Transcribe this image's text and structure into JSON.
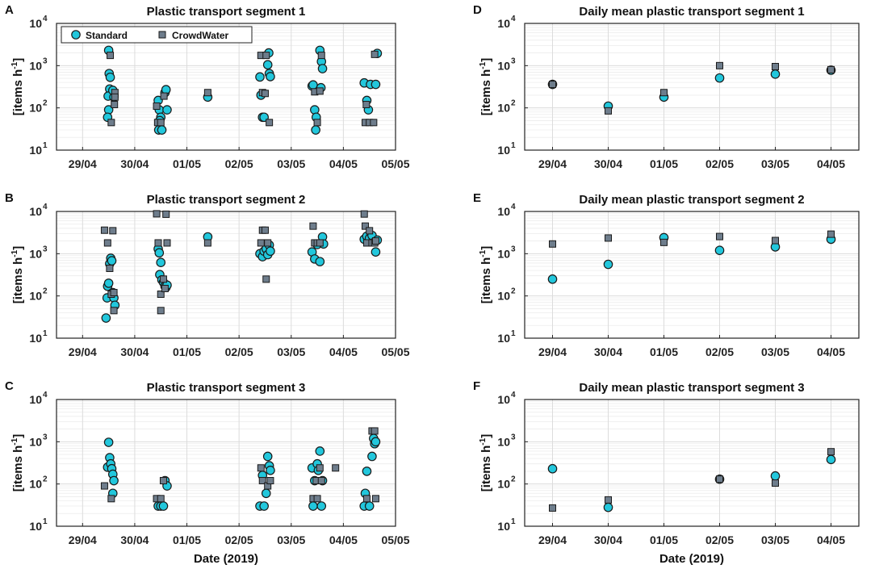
{
  "figure": {
    "colors": {
      "standard": "#22c7dc",
      "crowdwater": "#6e7d8c",
      "stroke": "#1a1a1a",
      "grid": "#dcdcdc"
    },
    "legend": {
      "standard": "Standard",
      "crowdwater": "CrowdWater"
    },
    "ylabel_main": "[items h",
    "ylabel_exp": "-1",
    "ylabel_close": "]",
    "xlabel": "Date (2019)",
    "ytick_base": "10",
    "ytick_exps": [
      "1",
      "2",
      "3",
      "4"
    ]
  },
  "chart_data": [
    {
      "id": "A",
      "letter": "A",
      "title": "Plastic transport segment 1",
      "type": "scatter",
      "yscale": "log",
      "ylim": [
        10,
        10000
      ],
      "xlim": [
        -0.5,
        6.0
      ],
      "xticks": [
        0,
        1,
        2,
        3,
        4,
        5,
        6
      ],
      "xticklabels": [
        "29/04",
        "30/04",
        "01/05",
        "02/05",
        "03/05",
        "04/05",
        "05/05"
      ],
      "series": [
        {
          "name": "Standard",
          "points": [
            [
              0.5,
              2300
            ],
            [
              0.51,
              650
            ],
            [
              0.52,
              280
            ],
            [
              0.49,
              190
            ],
            [
              0.5,
              90
            ],
            [
              0.48,
              60
            ],
            [
              0.53,
              530
            ],
            [
              0.6,
              180
            ],
            [
              0.58,
              260
            ],
            [
              1.45,
              150
            ],
            [
              1.47,
              90
            ],
            [
              1.5,
              60
            ],
            [
              1.48,
              50
            ],
            [
              1.46,
              30
            ],
            [
              1.52,
              30
            ],
            [
              1.58,
              230
            ],
            [
              1.6,
              270
            ],
            [
              1.62,
              90
            ],
            [
              2.4,
              180
            ],
            [
              3.4,
              540
            ],
            [
              3.42,
              200
            ],
            [
              3.45,
              60
            ],
            [
              3.48,
              60
            ],
            [
              3.55,
              1050
            ],
            [
              3.58,
              650
            ],
            [
              3.6,
              550
            ],
            [
              3.57,
              2000
            ],
            [
              4.4,
              330
            ],
            [
              4.42,
              350
            ],
            [
              4.45,
              90
            ],
            [
              4.48,
              60
            ],
            [
              4.47,
              30
            ],
            [
              4.55,
              2300
            ],
            [
              4.58,
              1250
            ],
            [
              4.6,
              850
            ],
            [
              4.57,
              300
            ],
            [
              5.4,
              390
            ],
            [
              5.45,
              150
            ],
            [
              5.48,
              90
            ],
            [
              5.52,
              360
            ],
            [
              5.62,
              360
            ],
            [
              5.65,
              1950
            ]
          ]
        },
        {
          "name": "CrowdWater",
          "points": [
            [
              0.53,
              1750
            ],
            [
              0.55,
              45
            ],
            [
              0.62,
              230
            ],
            [
              0.62,
              180
            ],
            [
              0.61,
              120
            ],
            [
              1.42,
              110
            ],
            [
              1.44,
              45
            ],
            [
              1.5,
              45
            ],
            [
              1.56,
              190
            ],
            [
              2.4,
              230
            ],
            [
              3.42,
              1750
            ],
            [
              3.45,
              230
            ],
            [
              3.5,
              220
            ],
            [
              3.52,
              1750
            ],
            [
              3.58,
              45
            ],
            [
              4.45,
              240
            ],
            [
              4.5,
              45
            ],
            [
              4.55,
              250
            ],
            [
              4.58,
              1750
            ],
            [
              5.42,
              45
            ],
            [
              5.44,
              120
            ],
            [
              5.5,
              45
            ],
            [
              5.58,
              45
            ],
            [
              5.6,
              1850
            ]
          ]
        }
      ]
    },
    {
      "id": "D",
      "letter": "D",
      "title": "Daily mean plastic transport segment 1",
      "type": "scatter",
      "yscale": "log",
      "ylim": [
        10,
        10000
      ],
      "xlim": [
        -0.5,
        5.5
      ],
      "xticks": [
        0,
        1,
        2,
        3,
        4,
        5
      ],
      "xticklabels": [
        "29/04",
        "30/04",
        "01/05",
        "02/05",
        "03/05",
        "04/05"
      ],
      "series": [
        {
          "name": "Standard",
          "points": [
            [
              0,
              360
            ],
            [
              1,
              110
            ],
            [
              2,
              180
            ],
            [
              3,
              510
            ],
            [
              4,
              630
            ],
            [
              5,
              780
            ]
          ]
        },
        {
          "name": "CrowdWater",
          "points": [
            [
              0,
              360
            ],
            [
              1,
              85
            ],
            [
              2,
              230
            ],
            [
              3,
              1000
            ],
            [
              4,
              950
            ],
            [
              5,
              800
            ]
          ]
        }
      ]
    },
    {
      "id": "B",
      "letter": "B",
      "title": "Plastic transport segment 2",
      "type": "scatter",
      "yscale": "log",
      "ylim": [
        10,
        10000
      ],
      "xlim": [
        -0.5,
        6.0
      ],
      "xticks": [
        0,
        1,
        2,
        3,
        4,
        5,
        6
      ],
      "xticklabels": [
        "29/04",
        "30/04",
        "01/05",
        "02/05",
        "03/05",
        "04/05",
        "05/05"
      ],
      "series": [
        {
          "name": "Standard",
          "points": [
            [
              0.45,
              30
            ],
            [
              0.47,
              90
            ],
            [
              0.48,
              170
            ],
            [
              0.5,
              200
            ],
            [
              0.52,
              580
            ],
            [
              0.54,
              780
            ],
            [
              0.56,
              680
            ],
            [
              0.58,
              120
            ],
            [
              0.6,
              90
            ],
            [
              0.62,
              60
            ],
            [
              1.45,
              1300
            ],
            [
              1.47,
              1050
            ],
            [
              1.5,
              620
            ],
            [
              1.48,
              320
            ],
            [
              1.52,
              240
            ],
            [
              1.55,
              210
            ],
            [
              1.58,
              170
            ],
            [
              1.6,
              160
            ],
            [
              1.62,
              180
            ],
            [
              2.4,
              2500
            ],
            [
              3.4,
              1000
            ],
            [
              3.45,
              850
            ],
            [
              3.48,
              1150
            ],
            [
              3.52,
              1300
            ],
            [
              3.55,
              950
            ],
            [
              3.58,
              1600
            ],
            [
              3.6,
              1150
            ],
            [
              4.4,
              1100
            ],
            [
              4.45,
              750
            ],
            [
              4.5,
              1650
            ],
            [
              4.55,
              650
            ],
            [
              4.6,
              2500
            ],
            [
              4.62,
              1700
            ],
            [
              5.4,
              2200
            ],
            [
              5.45,
              2600
            ],
            [
              5.5,
              2300
            ],
            [
              5.55,
              2700
            ],
            [
              5.6,
              1900
            ],
            [
              5.62,
              1100
            ],
            [
              5.65,
              2100
            ]
          ]
        },
        {
          "name": "CrowdWater",
          "points": [
            [
              0.42,
              3600
            ],
            [
              0.48,
              1800
            ],
            [
              0.52,
              450
            ],
            [
              0.55,
              110
            ],
            [
              0.58,
              3500
            ],
            [
              0.6,
              45
            ],
            [
              0.6,
              120
            ],
            [
              1.42,
              8800
            ],
            [
              1.45,
              1800
            ],
            [
              1.5,
              110
            ],
            [
              1.5,
              45
            ],
            [
              1.55,
              250
            ],
            [
              1.58,
              150
            ],
            [
              1.6,
              8600
            ],
            [
              1.62,
              1800
            ],
            [
              2.4,
              1800
            ],
            [
              3.42,
              1800
            ],
            [
              3.45,
              3600
            ],
            [
              3.5,
              3600
            ],
            [
              3.52,
              250
            ],
            [
              3.55,
              1800
            ],
            [
              4.42,
              4500
            ],
            [
              4.45,
              1800
            ],
            [
              4.5,
              1800
            ],
            [
              4.55,
              1800
            ],
            [
              5.4,
              8700
            ],
            [
              5.42,
              4500
            ],
            [
              5.45,
              1800
            ],
            [
              5.5,
              3500
            ],
            [
              5.55,
              1800
            ],
            [
              5.6,
              1800
            ],
            [
              5.62,
              2000
            ]
          ]
        }
      ]
    },
    {
      "id": "E",
      "letter": "E",
      "title": "Daily mean plastic transport segment 2",
      "type": "scatter",
      "yscale": "log",
      "ylim": [
        10,
        10000
      ],
      "xlim": [
        -0.5,
        5.5
      ],
      "xticks": [
        0,
        1,
        2,
        3,
        4,
        5
      ],
      "xticklabels": [
        "29/04",
        "30/04",
        "01/05",
        "02/05",
        "03/05",
        "04/05"
      ],
      "series": [
        {
          "name": "Standard",
          "points": [
            [
              0,
              250
            ],
            [
              1,
              560
            ],
            [
              2,
              2400
            ],
            [
              3,
              1200
            ],
            [
              4,
              1450
            ],
            [
              5,
              2200
            ]
          ]
        },
        {
          "name": "CrowdWater",
          "points": [
            [
              0,
              1700
            ],
            [
              1,
              2350
            ],
            [
              2,
              1850
            ],
            [
              3,
              2550
            ],
            [
              4,
              2050
            ],
            [
              5,
              2900
            ]
          ]
        }
      ]
    },
    {
      "id": "C",
      "letter": "C",
      "title": "Plastic transport segment 3",
      "type": "scatter",
      "yscale": "log",
      "ylim": [
        10,
        10000
      ],
      "xlim": [
        -0.5,
        6.0
      ],
      "xticks": [
        0,
        1,
        2,
        3,
        4,
        5,
        6
      ],
      "xticklabels": [
        "29/04",
        "30/04",
        "01/05",
        "02/05",
        "03/05",
        "04/05",
        "05/05"
      ],
      "series": [
        {
          "name": "Standard",
          "points": [
            [
              0.48,
              250
            ],
            [
              0.5,
              970
            ],
            [
              0.52,
              420
            ],
            [
              0.54,
              300
            ],
            [
              0.56,
              230
            ],
            [
              0.58,
              170
            ],
            [
              0.6,
              120
            ],
            [
              0.58,
              60
            ],
            [
              1.45,
              30
            ],
            [
              1.5,
              30
            ],
            [
              1.55,
              30
            ],
            [
              1.58,
              120
            ],
            [
              1.62,
              90
            ],
            [
              3.4,
              30
            ],
            [
              3.45,
              160
            ],
            [
              3.48,
              30
            ],
            [
              3.52,
              60
            ],
            [
              3.55,
              450
            ],
            [
              3.58,
              270
            ],
            [
              3.6,
              210
            ],
            [
              4.4,
              240
            ],
            [
              4.42,
              30
            ],
            [
              4.45,
              120
            ],
            [
              4.5,
              300
            ],
            [
              4.52,
              210
            ],
            [
              4.55,
              600
            ],
            [
              4.58,
              30
            ],
            [
              4.6,
              120
            ],
            [
              5.4,
              30
            ],
            [
              5.42,
              60
            ],
            [
              5.45,
              200
            ],
            [
              5.5,
              30
            ],
            [
              5.55,
              450
            ],
            [
              5.58,
              1200
            ],
            [
              5.6,
              900
            ],
            [
              5.62,
              1000
            ]
          ]
        },
        {
          "name": "CrowdWater",
          "points": [
            [
              0.42,
              90
            ],
            [
              0.55,
              45
            ],
            [
              1.42,
              45
            ],
            [
              1.5,
              45
            ],
            [
              1.55,
              120
            ],
            [
              3.42,
              240
            ],
            [
              3.45,
              120
            ],
            [
              3.55,
              90
            ],
            [
              3.6,
              120
            ],
            [
              4.42,
              45
            ],
            [
              4.48,
              120
            ],
            [
              4.5,
              45
            ],
            [
              4.55,
              240
            ],
            [
              4.58,
              120
            ],
            [
              4.85,
              240
            ],
            [
              5.45,
              45
            ],
            [
              5.55,
              1800
            ],
            [
              5.6,
              1800
            ],
            [
              5.62,
              45
            ]
          ]
        }
      ]
    },
    {
      "id": "F",
      "letter": "F",
      "title": "Daily mean plastic transport segment 3",
      "type": "scatter",
      "yscale": "log",
      "ylim": [
        10,
        10000
      ],
      "xlim": [
        -0.5,
        5.5
      ],
      "xticks": [
        0,
        1,
        2,
        3,
        4,
        5
      ],
      "xticklabels": [
        "29/04",
        "30/04",
        "01/05",
        "02/05",
        "03/05",
        "04/05"
      ],
      "series": [
        {
          "name": "Standard",
          "points": [
            [
              0,
              230
            ],
            [
              1,
              28
            ],
            [
              3,
              130
            ],
            [
              4,
              155
            ],
            [
              5,
              380
            ]
          ]
        },
        {
          "name": "CrowdWater",
          "points": [
            [
              0,
              27
            ],
            [
              1,
              42
            ],
            [
              3,
              130
            ],
            [
              4,
              105
            ],
            [
              5,
              580
            ]
          ]
        }
      ]
    }
  ]
}
